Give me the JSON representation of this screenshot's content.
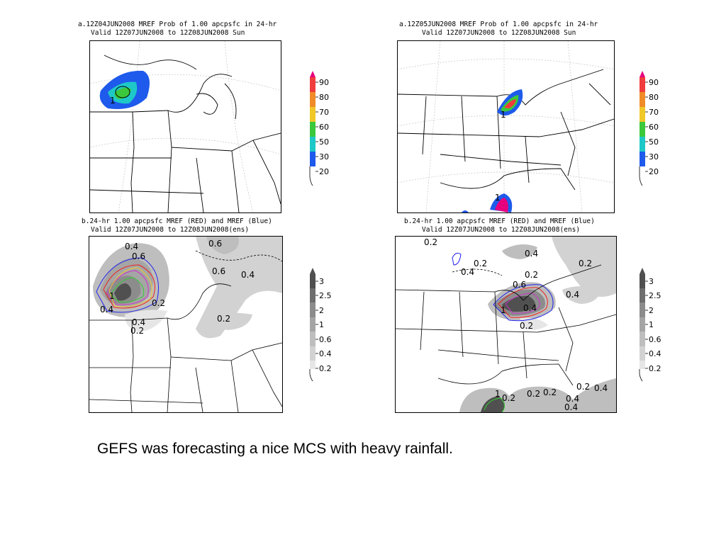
{
  "panels": [
    {
      "id": "a-left",
      "title_line1": "a.12Z04JUN2008 MREF Prob of 1.00 apcpsfc in 24-hr",
      "title_line2": "Valid 12Z07JUN2008 to 12Z08JUN2008 Sun",
      "map_labels": [
        "1"
      ]
    },
    {
      "id": "a-right",
      "title_line1": "a.12Z05JUN2008 MREF Prob of 1.00 apcpsfc in 24-hr",
      "title_line2": "Valid 12Z07JUN2008 to 12Z08JUN2008 Sun",
      "map_labels": [
        "1",
        "1"
      ]
    },
    {
      "id": "b-left",
      "title_line1": "b.24-hr 1.00 apcpsfc MREF (RED) and MREF (Blue)",
      "title_line2": "Valid 12Z07JUN2008 to 12Z08JUN2008(ens)",
      "map_labels": [
        "0.4",
        "0.6",
        "0.6",
        "0.6",
        "0.4",
        "1",
        "0.2",
        "0.2",
        "0.4",
        "0.2",
        "0.4"
      ]
    },
    {
      "id": "b-right",
      "title_line1": "b.24-hr 1.00 apcpsfc MREF (RED) and MREF (Blue)",
      "title_line2": "Valid 12Z07JUN2008 to 12Z08JUN2008(ens)",
      "map_labels": [
        "0.2",
        "0.4",
        "0.2",
        "0.4",
        "0.2",
        "0.6",
        "0.4",
        "0.2",
        "0.4",
        "0.2",
        "1",
        "0.2",
        "1",
        "0.2",
        "0.2",
        "0.2",
        "0.4",
        "0.4",
        "0.4"
      ]
    }
  ],
  "colorbar_prob": {
    "labels": [
      "90",
      "80",
      "70",
      "60",
      "50",
      "30",
      "20"
    ],
    "colors": [
      "#e6007e",
      "#f03c3c",
      "#f08c28",
      "#f0c828",
      "#3cc83c",
      "#1ec8c8",
      "#1e5aeb"
    ]
  },
  "colorbar_amount": {
    "labels": [
      "3",
      "2.5",
      "2",
      "1",
      "0.6",
      "0.4",
      "0.2"
    ],
    "colors": [
      "#505050",
      "#6e6e6e",
      "#8c8c8c",
      "#a5a5a5",
      "#bebebe",
      "#d2d2d2",
      "#e6e6e6"
    ]
  },
  "caption": "GEFS was forecasting a nice MCS with heavy rainfall."
}
